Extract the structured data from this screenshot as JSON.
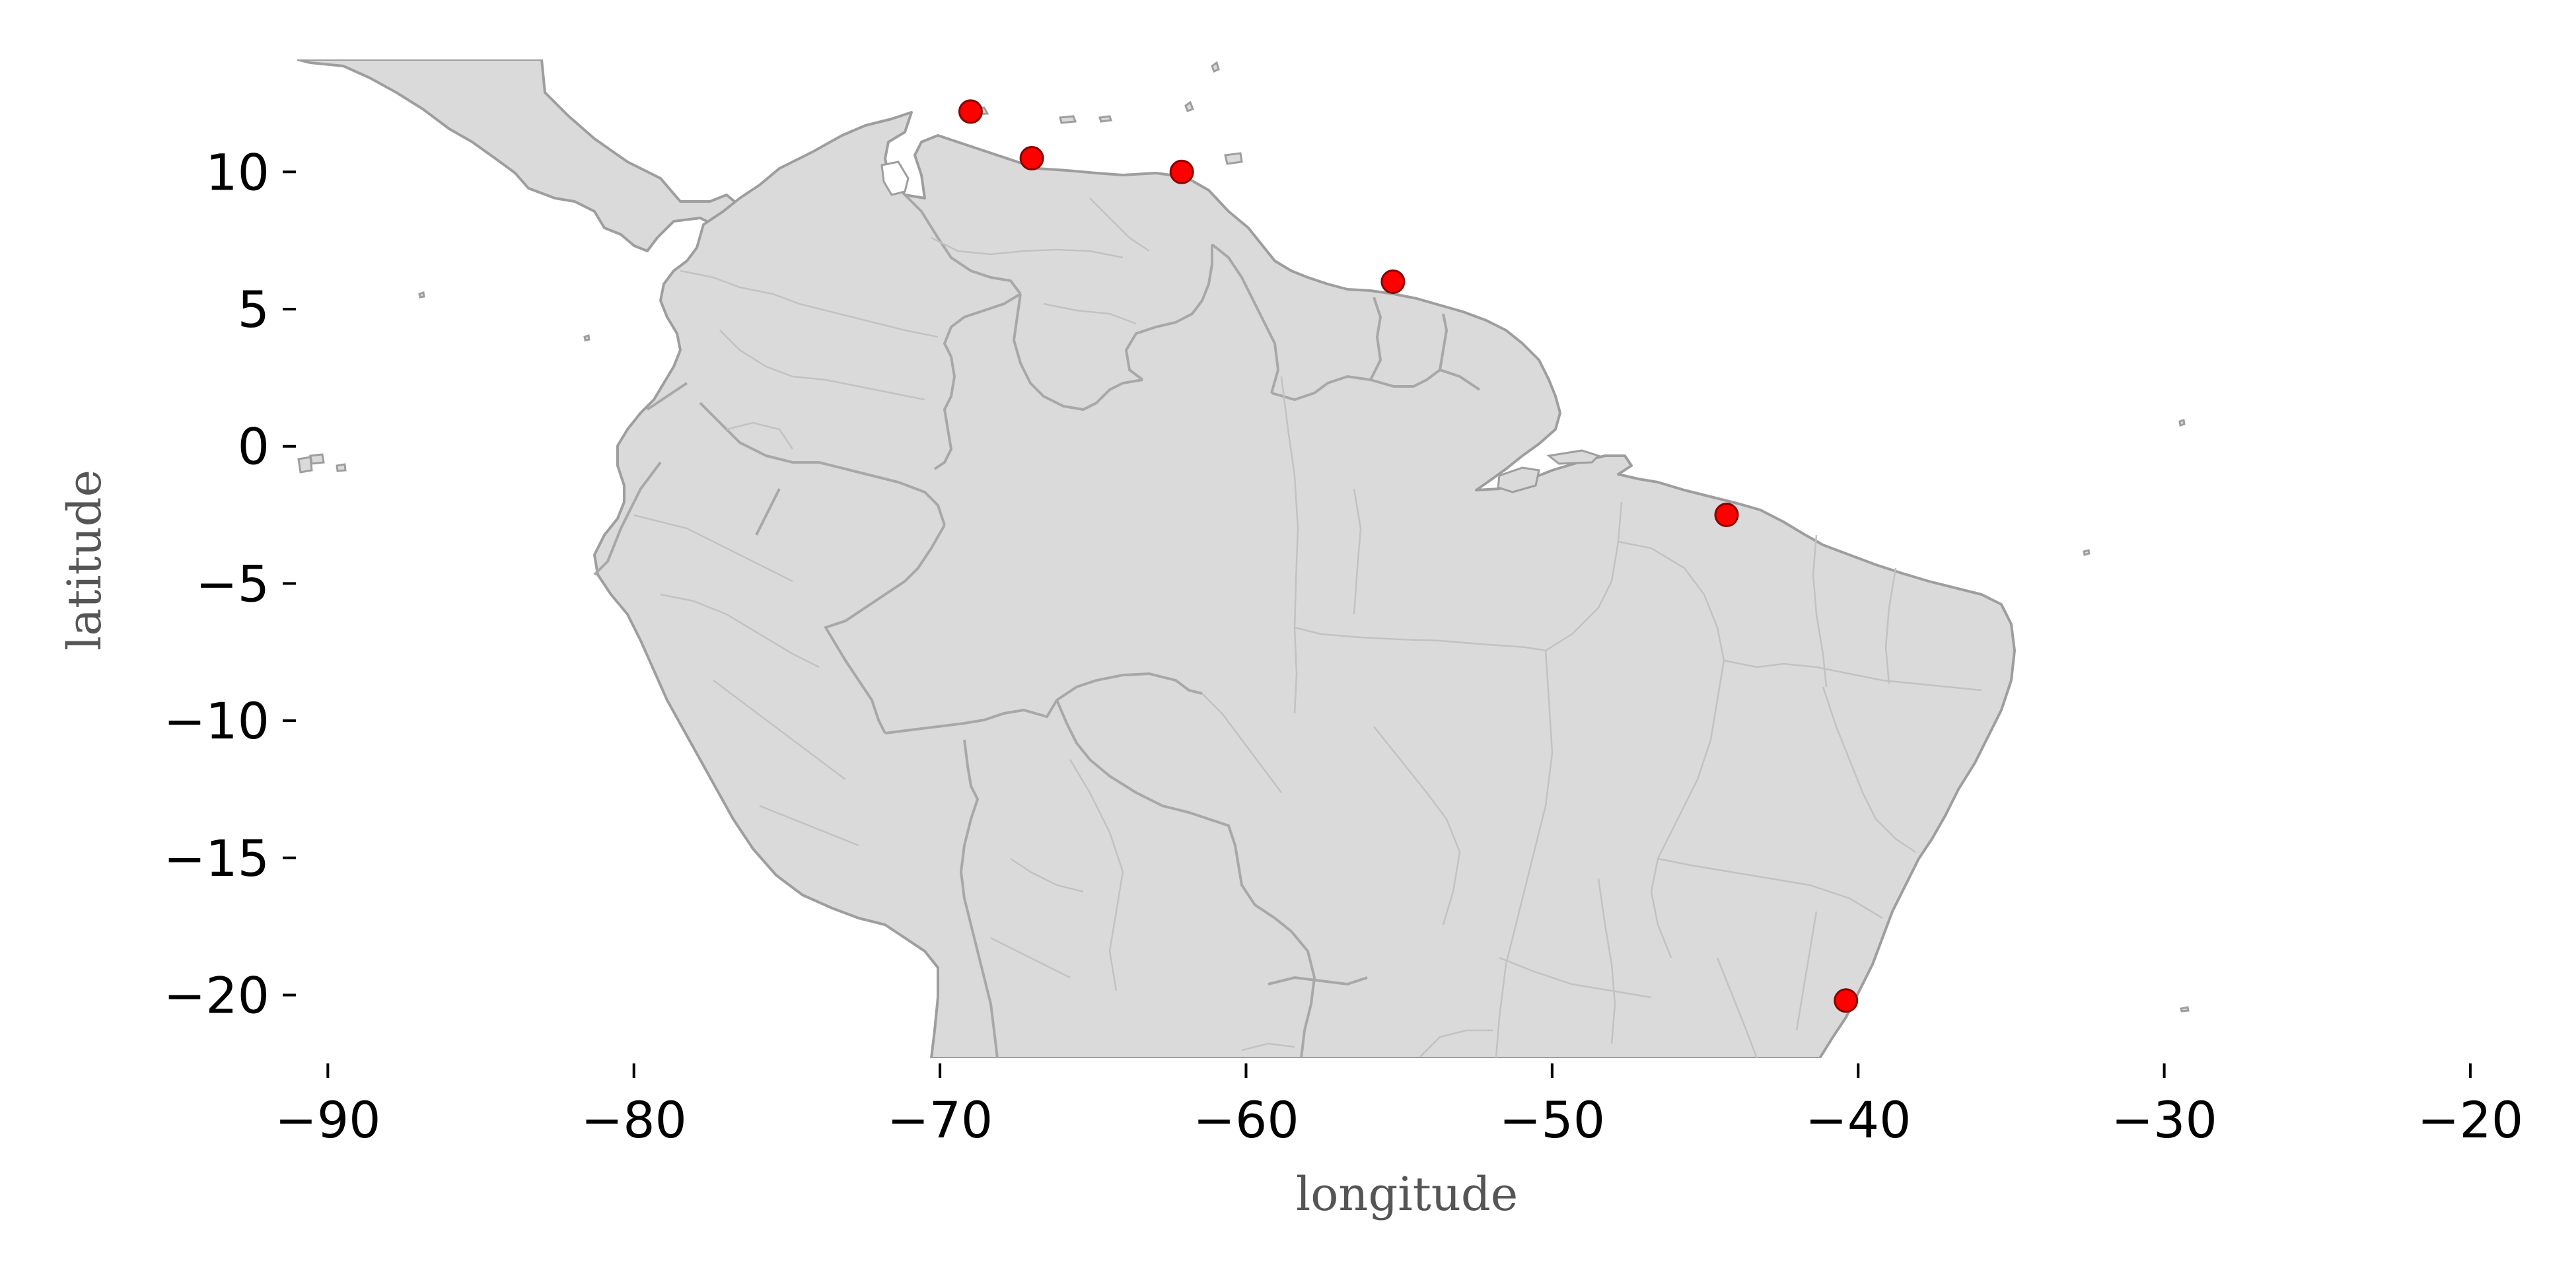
{
  "map": {
    "xlabel": "longitude",
    "ylabel": "latitude",
    "xlim": [
      -91,
      -20
    ],
    "ylim": [
      -22.3,
      14.1
    ],
    "xticks": [
      -90,
      -80,
      -70,
      -60,
      -50,
      -40,
      -30,
      -20
    ],
    "yticks": [
      10,
      5,
      0,
      -5,
      -10,
      -15,
      -20
    ],
    "land_color": "#dadada",
    "border_color": "#9e9e9e",
    "marker_color": "#ff0000",
    "marker_edge_color": "#8b0000"
  },
  "chart_data": {
    "type": "scatter",
    "xlabel": "longitude",
    "ylabel": "latitude",
    "xlim": [
      -91,
      -20
    ],
    "ylim": [
      -22.3,
      14.1
    ],
    "grid": false,
    "points": [
      {
        "lon": -69.0,
        "lat": 12.2
      },
      {
        "lon": -67.0,
        "lat": 10.5
      },
      {
        "lon": -62.1,
        "lat": 10.0
      },
      {
        "lon": -55.2,
        "lat": 6.0
      },
      {
        "lon": -44.3,
        "lat": -2.5
      },
      {
        "lon": -40.4,
        "lat": -20.2
      }
    ]
  }
}
